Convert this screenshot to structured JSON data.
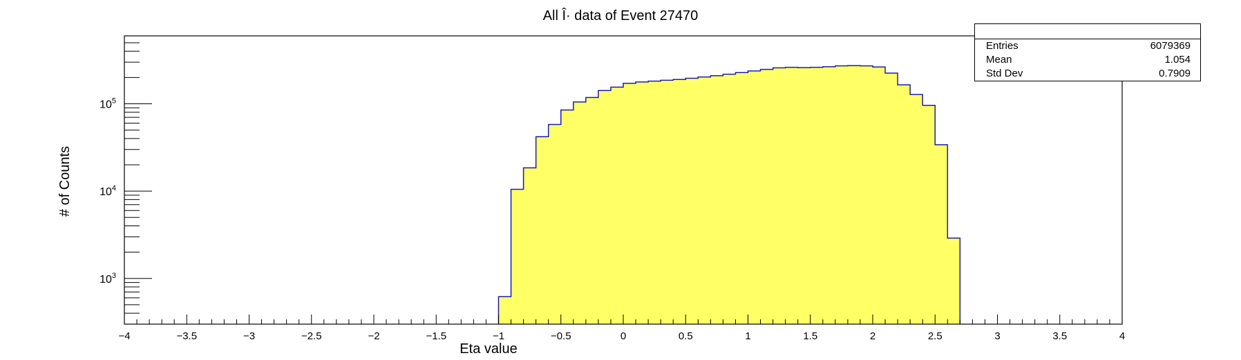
{
  "chart_data": {
    "type": "bar",
    "title": "All Î· data of Event 27470",
    "xlabel": "Eta value",
    "ylabel": "# of Counts",
    "xlim": [
      -4,
      4
    ],
    "ylim": [
      300,
      600000
    ],
    "yscale": "log",
    "x_ticks": [
      "−4",
      "−3.5",
      "−3",
      "−2.5",
      "−2",
      "−1.5",
      "−1",
      "−0.5",
      "0",
      "0.5",
      "1",
      "1.5",
      "2",
      "2.5",
      "3",
      "3.5",
      "4"
    ],
    "y_ticks": [
      {
        "base": "10",
        "exp": "3",
        "value": 1000
      },
      {
        "base": "10",
        "exp": "4",
        "value": 10000
      },
      {
        "base": "10",
        "exp": "5",
        "value": 100000
      }
    ],
    "bin_width": 0.1,
    "bins": [
      {
        "x": -1.0,
        "y": 620
      },
      {
        "x": -0.9,
        "y": 10500
      },
      {
        "x": -0.8,
        "y": 18500
      },
      {
        "x": -0.7,
        "y": 42000
      },
      {
        "x": -0.6,
        "y": 58000
      },
      {
        "x": -0.5,
        "y": 85000
      },
      {
        "x": -0.4,
        "y": 105000
      },
      {
        "x": -0.3,
        "y": 118000
      },
      {
        "x": -0.2,
        "y": 142000
      },
      {
        "x": -0.1,
        "y": 155000
      },
      {
        "x": 0.0,
        "y": 172000
      },
      {
        "x": 0.1,
        "y": 178000
      },
      {
        "x": 0.2,
        "y": 182000
      },
      {
        "x": 0.3,
        "y": 186000
      },
      {
        "x": 0.4,
        "y": 190000
      },
      {
        "x": 0.5,
        "y": 196000
      },
      {
        "x": 0.6,
        "y": 203000
      },
      {
        "x": 0.7,
        "y": 210000
      },
      {
        "x": 0.8,
        "y": 218000
      },
      {
        "x": 0.9,
        "y": 228000
      },
      {
        "x": 1.0,
        "y": 238000
      },
      {
        "x": 1.1,
        "y": 248000
      },
      {
        "x": 1.2,
        "y": 258000
      },
      {
        "x": 1.3,
        "y": 262000
      },
      {
        "x": 1.4,
        "y": 260000
      },
      {
        "x": 1.5,
        "y": 262000
      },
      {
        "x": 1.6,
        "y": 266000
      },
      {
        "x": 1.7,
        "y": 272000
      },
      {
        "x": 1.8,
        "y": 274000
      },
      {
        "x": 1.9,
        "y": 272000
      },
      {
        "x": 2.0,
        "y": 264000
      },
      {
        "x": 2.1,
        "y": 225000
      },
      {
        "x": 2.2,
        "y": 165000
      },
      {
        "x": 2.3,
        "y": 128000
      },
      {
        "x": 2.4,
        "y": 96000
      },
      {
        "x": 2.5,
        "y": 34000
      },
      {
        "x": 2.6,
        "y": 2900
      }
    ],
    "fill_color": "#ffff66",
    "line_color": "#1c1ca8",
    "grid": false,
    "legend": "none",
    "stats_box": {
      "placement": "top-right",
      "rows": [
        {
          "label": "Entries",
          "value": "6079369"
        },
        {
          "label": "Mean",
          "value": "1.054"
        },
        {
          "label": "Std Dev",
          "value": "0.7909"
        }
      ]
    }
  }
}
